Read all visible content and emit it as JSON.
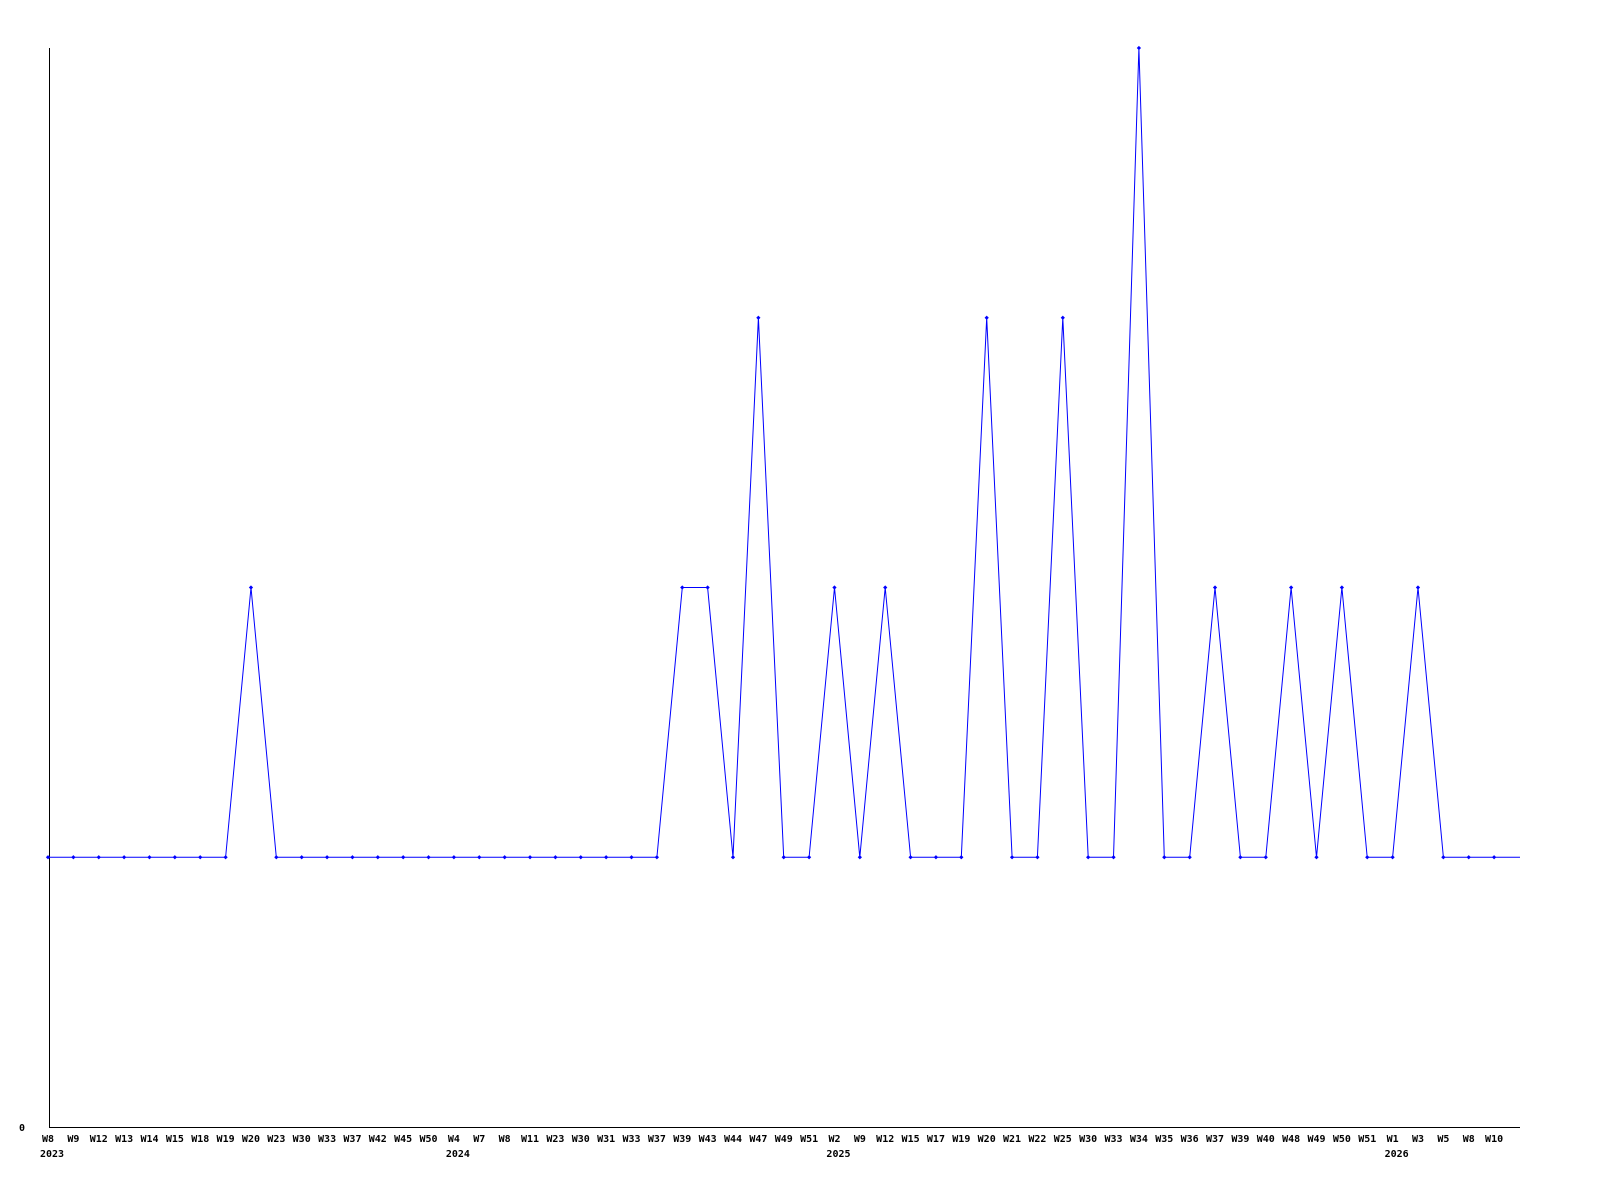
{
  "chart_data": {
    "type": "line",
    "title": "",
    "xlabel": "",
    "ylabel": "",
    "ylim": [
      0,
      4
    ],
    "y_tick_labels": [
      "0"
    ],
    "grid": false,
    "legend": "none",
    "line_color": "#0000ff",
    "categories": [
      "W8",
      "W9",
      "W12",
      "W13",
      "W14",
      "W15",
      "W18",
      "W19",
      "W20",
      "W23",
      "W30",
      "W33",
      "W37",
      "W42",
      "W45",
      "W50",
      "W4",
      "W7",
      "W8",
      "W11",
      "W23",
      "W30",
      "W31",
      "W33",
      "W37",
      "W39",
      "W43",
      "W44",
      "W47",
      "W49",
      "W51",
      "W2",
      "W9",
      "W12",
      "W15",
      "W17",
      "W19",
      "W20",
      "W21",
      "W22",
      "W25",
      "W30",
      "W33",
      "W34",
      "W35",
      "W36",
      "W37",
      "W39",
      "W40",
      "W48",
      "W49",
      "W50",
      "W51",
      "W1",
      "W3",
      "W5",
      "W8",
      "W10"
    ],
    "year_labels": [
      {
        "label": "2023",
        "at_index": 0
      },
      {
        "label": "2024",
        "at_index": 16
      },
      {
        "label": "2025",
        "at_index": 31
      },
      {
        "label": "2026",
        "at_index": 53
      }
    ],
    "values": [
      1,
      1,
      1,
      1,
      1,
      1,
      1,
      1,
      2,
      1,
      1,
      1,
      1,
      1,
      1,
      1,
      1,
      1,
      1,
      1,
      1,
      1,
      1,
      1,
      1,
      2,
      2,
      1,
      3,
      1,
      1,
      2,
      1,
      2,
      1,
      1,
      1,
      3,
      1,
      1,
      3,
      1,
      1,
      4,
      1,
      1,
      2,
      1,
      1,
      2,
      1,
      2,
      1,
      1,
      2,
      1,
      1,
      1
    ]
  }
}
